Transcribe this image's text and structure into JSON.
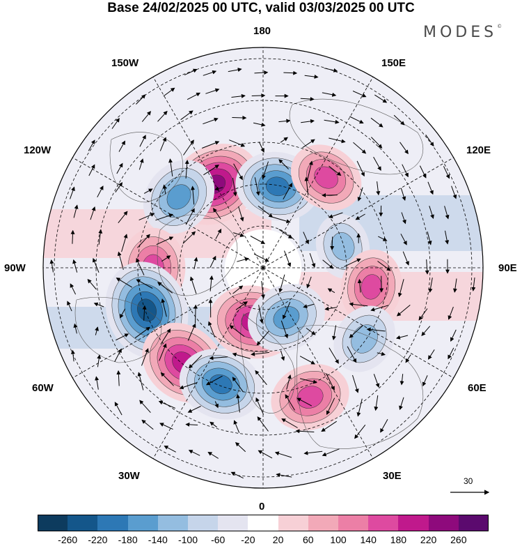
{
  "title": "Base 24/02/2025 00 UTC, valid 03/03/2025 00 UTC",
  "brand": "MODES",
  "brand_mark": "©",
  "longitude_labels": {
    "n180": "180",
    "w150": "150W",
    "e150": "150E",
    "w120": "120W",
    "e120": "120E",
    "w90": "90W",
    "e90": "90E",
    "w60": "60W",
    "e60": "60E",
    "w30": "30W",
    "e30": "30E",
    "s0": "0"
  },
  "reference_vector": {
    "label": "30"
  },
  "colorbar": {
    "ticks": [
      "-260",
      "-220",
      "-180",
      "-140",
      "-100",
      "-60",
      "-20",
      "20",
      "60",
      "100",
      "140",
      "180",
      "220",
      "260"
    ],
    "colors": [
      "#0d3b5e",
      "#14568a",
      "#2d78b5",
      "#5a9dcf",
      "#94bde0",
      "#c6d5ea",
      "#e4e4f0",
      "#ffffff",
      "#f7d0d6",
      "#f2a9b8",
      "#ec7fa6",
      "#de4aa0",
      "#c0198c",
      "#8e0a7c",
      "#5b0a6e"
    ]
  },
  "anomaly_centers": [
    {
      "lon_lat": "150W 55N",
      "sign": "positive",
      "value": 220
    },
    {
      "lon_lat": "170E 60N",
      "sign": "negative",
      "value": -180
    },
    {
      "lon_lat": "145E 50N",
      "sign": "positive",
      "value": 140
    },
    {
      "lon_lat": "130W 50N",
      "sign": "negative",
      "value": -160
    },
    {
      "lon_lat": "105E 60N",
      "sign": "negative",
      "value": -100
    },
    {
      "lon_lat": "90W 50N",
      "sign": "positive",
      "value": 160
    },
    {
      "lon_lat": "80E 50N",
      "sign": "positive",
      "value": 140
    },
    {
      "lon_lat": "70W 45N",
      "sign": "negative",
      "value": -240
    },
    {
      "lon_lat": "40W 45N",
      "sign": "positive",
      "value": 200
    },
    {
      "lon_lat": "20W 45N",
      "sign": "negative",
      "value": -180
    },
    {
      "lon_lat": "10W 70N",
      "sign": "positive",
      "value": 200
    },
    {
      "lon_lat": "25E 70N",
      "sign": "negative",
      "value": -160
    },
    {
      "lon_lat": "20E 40N",
      "sign": "positive",
      "value": 160
    },
    {
      "lon_lat": "55E 45N",
      "sign": "negative",
      "value": -120
    }
  ]
}
